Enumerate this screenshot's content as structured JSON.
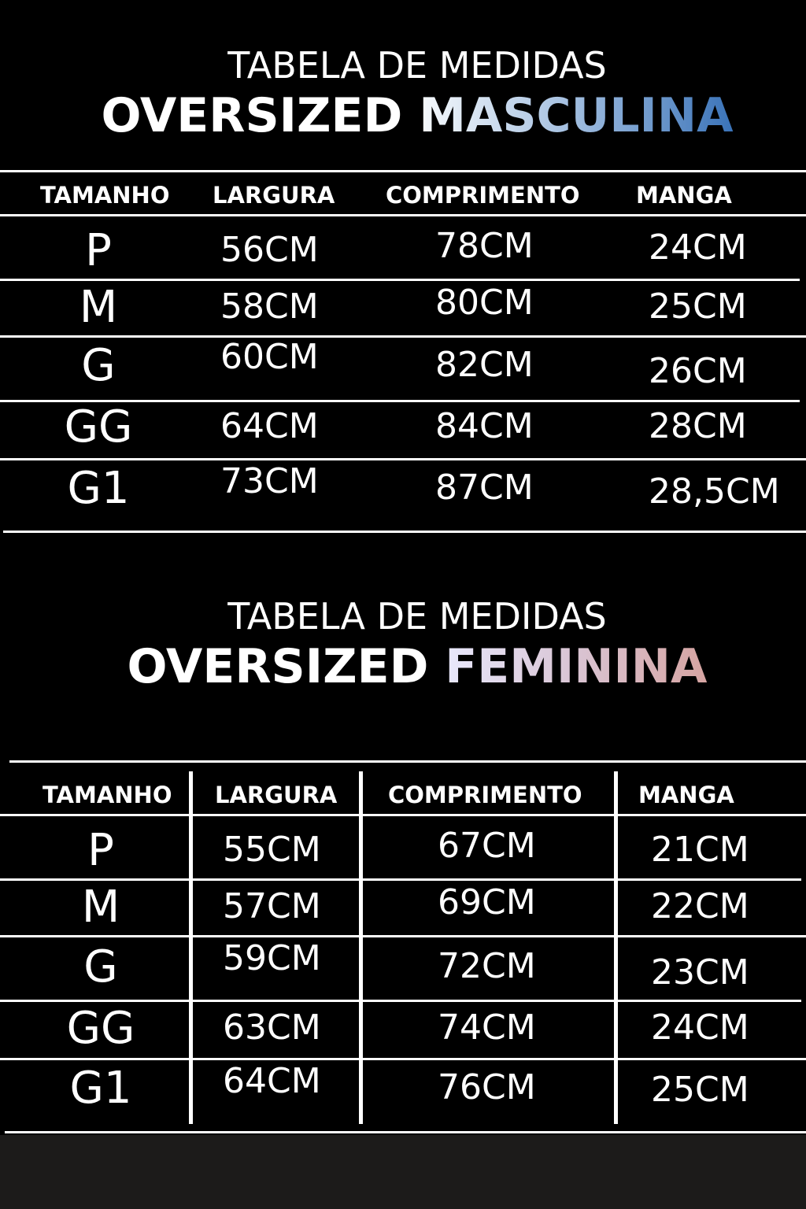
{
  "masculina": {
    "title": "TABELA DE MEDIDAS",
    "subtitle_prefix": "OVERSIZED",
    "subtitle_accent": "MASCULINA",
    "accent_gradient": [
      "#f7fafc",
      "#3a73b8"
    ],
    "headers": [
      "TAMANHO",
      "LARGURA",
      "COMPRIMENTO",
      "MANGA"
    ],
    "rows": [
      [
        "P",
        "56CM",
        "78CM",
        "24CM"
      ],
      [
        "M",
        "58CM",
        "80CM",
        "25CM"
      ],
      [
        "G",
        "60CM",
        "82CM",
        "26CM"
      ],
      [
        "GG",
        "64CM",
        "84CM",
        "28CM"
      ],
      [
        "G1",
        "73CM",
        "87CM",
        "28,5CM"
      ]
    ]
  },
  "feminina": {
    "title": "TABELA DE MEDIDAS",
    "subtitle_prefix": "OVERSIZED",
    "subtitle_accent": "FEMININA",
    "accent_gradient": [
      "#e8e8fc",
      "#d6a4a2"
    ],
    "headers": [
      "TAMANHO",
      "LARGURA",
      "COMPRIMENTO",
      "MANGA"
    ],
    "rows": [
      [
        "P",
        "55CM",
        "67CM",
        "21CM"
      ],
      [
        "M",
        "57CM",
        "69CM",
        "22CM"
      ],
      [
        "G",
        "59CM",
        "72CM",
        "23CM"
      ],
      [
        "GG",
        "63CM",
        "74CM",
        "24CM"
      ],
      [
        "G1",
        "64CM",
        "76CM",
        "25CM"
      ]
    ]
  }
}
